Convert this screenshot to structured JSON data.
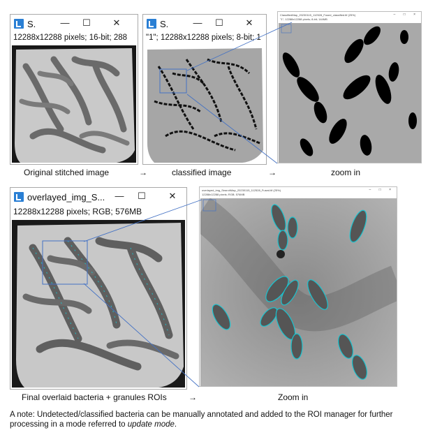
{
  "panels": {
    "original": {
      "title": "S.",
      "info": "12288x12288 pixels; 16-bit; 288",
      "caption": "Original stitched image"
    },
    "classified": {
      "title": "S.",
      "info": "\"1\"; 12288x12288 pixels; 8-bit; 1",
      "caption": "classified image"
    },
    "zoom1": {
      "title": "ClassifiedMap_20230115_112528_Fused_classified.tif (25%)",
      "info": "\"1\"; 12288x12288 pixels; 8-bit; 144MB",
      "caption": "zoom in"
    },
    "overlay": {
      "title": "overlayed_img_S...",
      "info": "12288x12288 pixels; RGB; 576MB",
      "caption": "Final overlaid bacteria + granules ROIs"
    },
    "zoom2": {
      "title": "overlayed_img_SearchMap_20230115_112528_Fused.tif (25%)",
      "info": "12288x12288 pixels; RGB; 576MB",
      "caption": "Zoom in"
    }
  },
  "arrows": [
    "→",
    "→",
    "→"
  ],
  "window_controls": {
    "minimize": "—",
    "maximize": "☐",
    "close": "✕"
  },
  "note": {
    "prefix": "A note: Undetected/classified bacteria can be manually annotated and added to the ROI manager for further processing in a mode referred to ",
    "emphasis": "update mode",
    "suffix": "."
  },
  "colors": {
    "roi_cyan": "#19c4d0",
    "link_line": "#4472c4"
  }
}
